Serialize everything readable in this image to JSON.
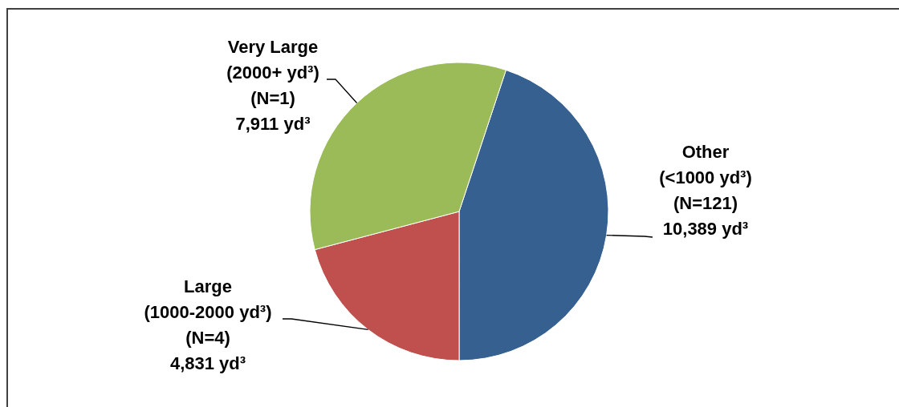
{
  "chart_data": {
    "type": "pie",
    "categories": [
      "Other\n(<1000 yd³)\n(N=121)",
      "Large\n(1000-2000 yd³)\n(N=4)",
      "Very Large\n(2000+ yd³)\n(N=1)"
    ],
    "values": [
      10389,
      4831,
      7911
    ],
    "colors": [
      "#36608f",
      "#c0504d",
      "#9bbb59"
    ],
    "value_labels": [
      "10,389 yd³",
      "4,831 yd³",
      "7,911 yd³"
    ]
  }
}
